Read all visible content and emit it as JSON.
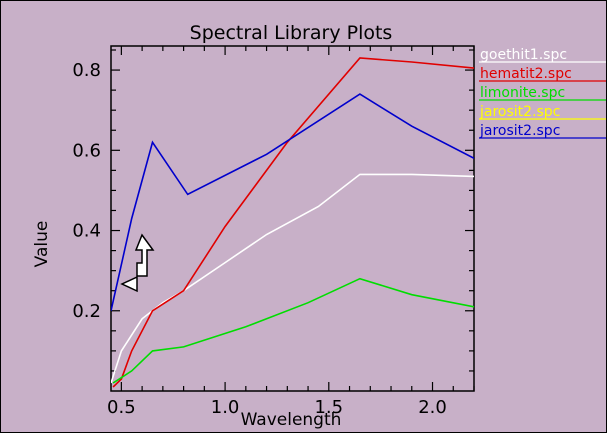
{
  "chart_data": {
    "type": "line",
    "title": "Spectral Library Plots",
    "xlabel": "Wavelength",
    "ylabel": "Value",
    "xlim": [
      0.45,
      2.2
    ],
    "ylim": [
      0.0,
      0.86
    ],
    "xticks": [
      0.5,
      1.0,
      1.5,
      2.0
    ],
    "xtick_labels": [
      "0.5",
      "1.0",
      "1.5",
      "2.0"
    ],
    "yticks": [
      0.2,
      0.4,
      0.6,
      0.8
    ],
    "ytick_labels": [
      "0.2",
      "0.4",
      "0.6",
      "0.8"
    ],
    "grid": false,
    "legend_position": "right, outside plot, clipped by window edge",
    "series": [
      {
        "name": "goethit1.spc",
        "color": "#ffffff",
        "points": [
          [
            0.45,
            0.02
          ],
          [
            0.5,
            0.1
          ],
          [
            0.6,
            0.18
          ],
          [
            0.7,
            0.22
          ],
          [
            0.8,
            0.25
          ],
          [
            1.0,
            0.32
          ],
          [
            1.2,
            0.39
          ],
          [
            1.45,
            0.46
          ],
          [
            1.65,
            0.54
          ],
          [
            1.9,
            0.54
          ],
          [
            2.2,
            0.535
          ]
        ]
      },
      {
        "name": "hematit2.spc",
        "color": "#e00000",
        "points": [
          [
            0.46,
            0.01
          ],
          [
            0.5,
            0.03
          ],
          [
            0.55,
            0.1
          ],
          [
            0.65,
            0.2
          ],
          [
            0.8,
            0.25
          ],
          [
            1.0,
            0.41
          ],
          [
            1.3,
            0.62
          ],
          [
            1.65,
            0.83
          ],
          [
            1.9,
            0.82
          ],
          [
            2.2,
            0.805
          ]
        ]
      },
      {
        "name": "limonite.spc",
        "color": "#00dd00",
        "points": [
          [
            0.46,
            0.02
          ],
          [
            0.55,
            0.05
          ],
          [
            0.65,
            0.1
          ],
          [
            0.8,
            0.11
          ],
          [
            1.1,
            0.16
          ],
          [
            1.4,
            0.22
          ],
          [
            1.65,
            0.28
          ],
          [
            1.9,
            0.24
          ],
          [
            2.2,
            0.21
          ]
        ]
      },
      {
        "name": "jarosit2.spc",
        "color": "#ffff00",
        "points": []
      },
      {
        "name": "jarosit2.spc",
        "color": "#0000cc",
        "points": [
          [
            0.45,
            0.2
          ],
          [
            0.55,
            0.43
          ],
          [
            0.65,
            0.62
          ],
          [
            0.82,
            0.49
          ],
          [
            1.2,
            0.59
          ],
          [
            1.65,
            0.74
          ],
          [
            1.9,
            0.66
          ],
          [
            2.2,
            0.58
          ]
        ]
      }
    ]
  },
  "legend": {
    "items": [
      {
        "label": "goethit1.spc",
        "color": "#ffffff"
      },
      {
        "label": "hematit2.spc",
        "color": "#e00000"
      },
      {
        "label": "limonite.spc",
        "color": "#00dd00"
      },
      {
        "label": "jarosit2.spc",
        "color": "#ffff00"
      },
      {
        "label": "jarosit2.spc",
        "color": "#0000cc"
      }
    ]
  },
  "cursor": {
    "icon": "up-left-arrow-cursor-icon"
  }
}
